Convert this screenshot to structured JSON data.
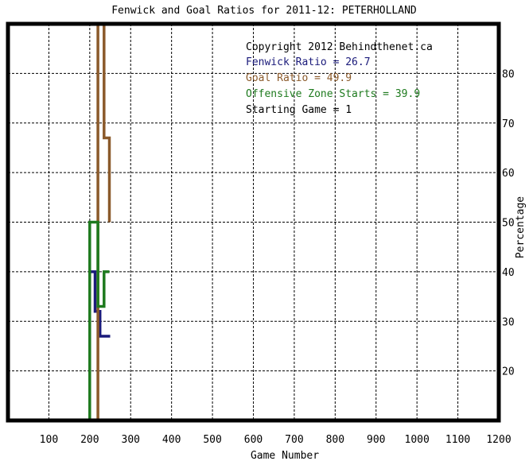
{
  "chart_data": {
    "type": "line",
    "title": "Fenwick and Goal Ratios for 2011-12: PETERHOLLAND",
    "xlabel": "Game Number",
    "ylabel": "Percentage",
    "xlim": [
      0,
      1200
    ],
    "ylim": [
      10,
      90
    ],
    "xticks": [
      "100",
      "200",
      "300",
      "400",
      "500",
      "600",
      "700",
      "800",
      "900",
      "1000",
      "1100",
      "1200"
    ],
    "yticks": [
      "20",
      "30",
      "40",
      "50",
      "60",
      "70",
      "80"
    ],
    "grid": true,
    "legend_position": "top-right",
    "annotations": {
      "copyright": "Copyright 2012 Behindthenet.ca",
      "fenwick": "Fenwick Ratio = 26.7",
      "goal": "Goal Ratio = 49.9",
      "ozone": "Offensive Zone Starts = 39.9",
      "start": "Starting Game = 1"
    },
    "series": [
      {
        "name": "Fenwick Ratio",
        "color": "#1a1a7a",
        "x": [
          200,
          210,
          213,
          213,
          225,
          225,
          237,
          237,
          250
        ],
        "y": [
          40,
          40,
          40,
          32,
          32,
          27,
          27,
          27,
          27
        ]
      },
      {
        "name": "Goal Ratio",
        "color": "#8b5a2b",
        "x": [
          220,
          220,
          223,
          223,
          235,
          235,
          240,
          240,
          248,
          248
        ],
        "y": [
          10,
          90,
          90,
          90,
          90,
          67,
          67,
          67,
          67,
          50
        ]
      },
      {
        "name": "Offensive Zone Starts",
        "color": "#1e7a1e",
        "x": [
          200,
          200,
          210,
          210,
          220,
          220,
          235,
          235,
          248
        ],
        "y": [
          10,
          50,
          50,
          50,
          50,
          33,
          33,
          40,
          40
        ]
      }
    ]
  }
}
